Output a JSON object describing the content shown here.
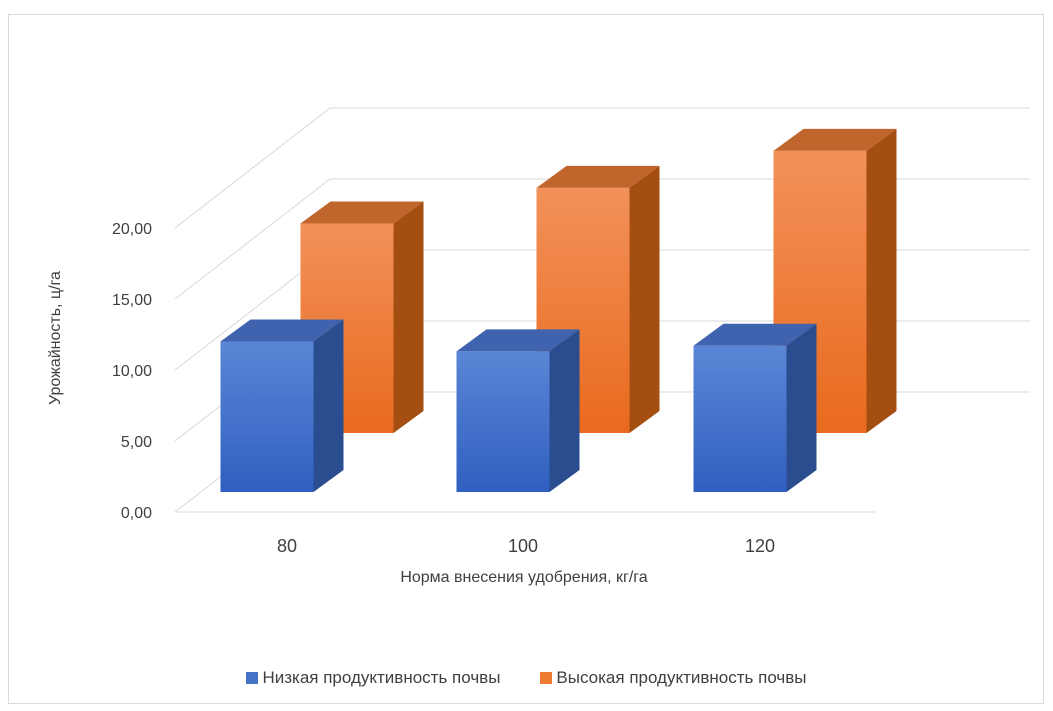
{
  "chart_data": {
    "type": "bar",
    "title": "",
    "xlabel": "Норма внесения удобрения, кг/га",
    "ylabel": "Урожайность, ц/га",
    "categories": [
      "80",
      "100",
      "120"
    ],
    "series": [
      {
        "name": "Низкая продуктивность почвы",
        "values": [
          10.6,
          9.9,
          10.3
        ],
        "color": "#4472C4"
      },
      {
        "name": "Высокая продуктивность почвы",
        "values": [
          14.7,
          17.2,
          19.8
        ],
        "color": "#ED7D31"
      }
    ],
    "ylim": [
      0,
      20
    ],
    "yticks": [
      "0,00",
      "5,00",
      "10,00",
      "15,00",
      "20,00"
    ],
    "grid": true,
    "legend_position": "bottom"
  }
}
